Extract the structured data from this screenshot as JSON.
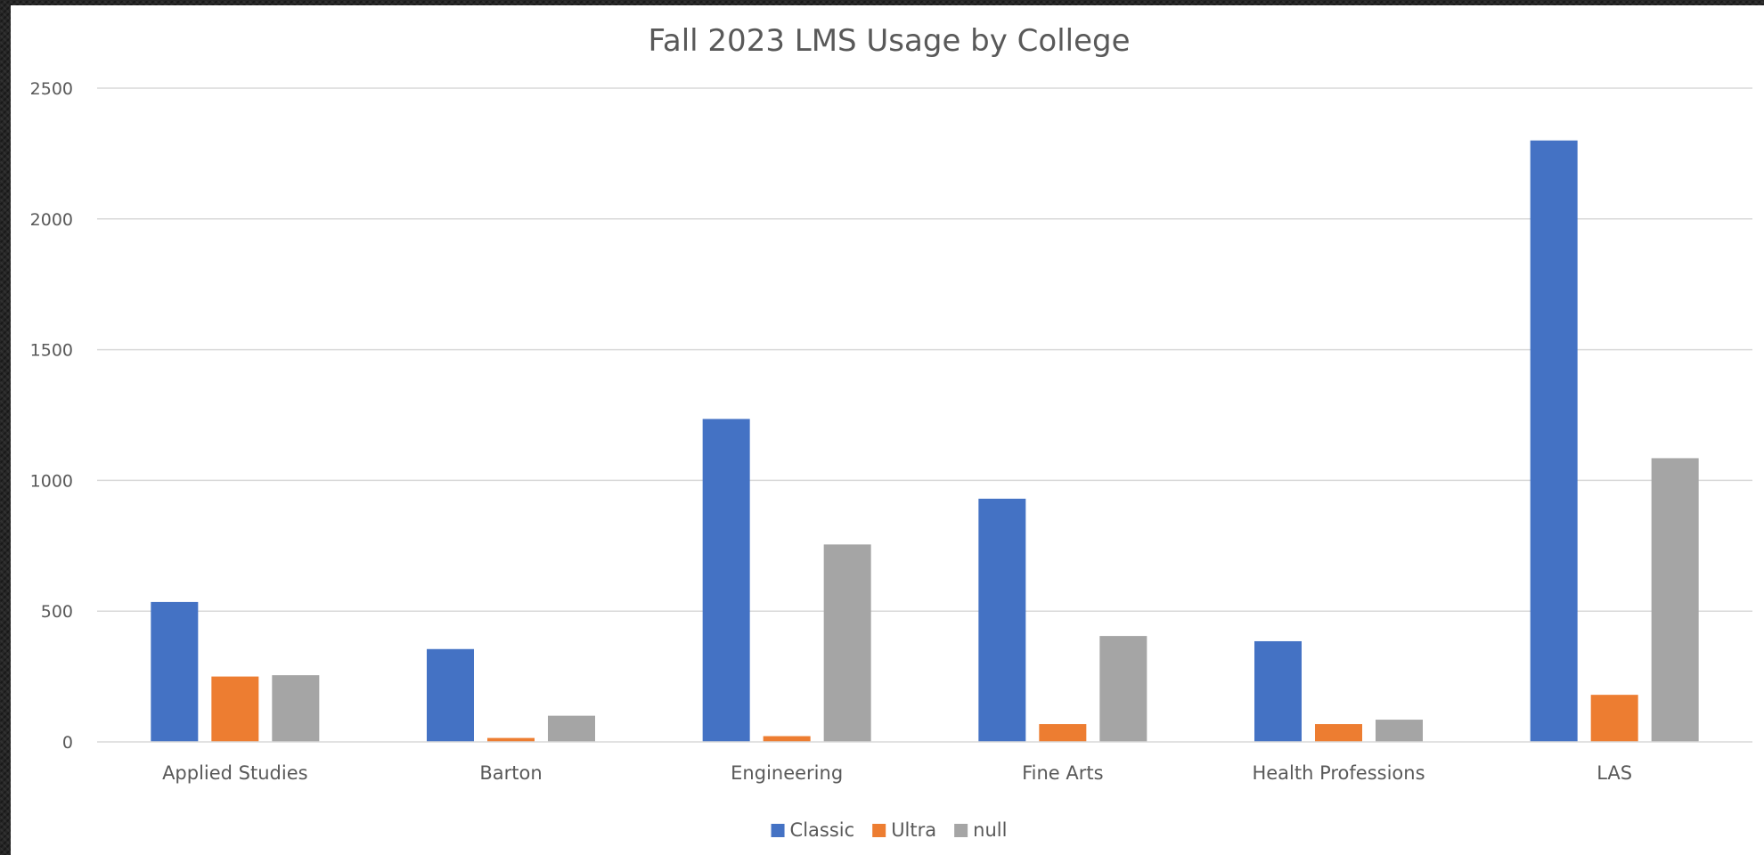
{
  "chart_data": {
    "type": "bar",
    "title": "Fall 2023 LMS Usage by College",
    "xlabel": "",
    "ylabel": "",
    "categories": [
      "Applied Studies",
      "Barton",
      "Engineering",
      "Fine Arts",
      "Health Professions",
      "LAS"
    ],
    "series": [
      {
        "name": "Classic",
        "color": "#4472C4",
        "values": [
          535,
          355,
          1235,
          930,
          385,
          2300
        ]
      },
      {
        "name": "Ultra",
        "color": "#ED7D31",
        "values": [
          250,
          15,
          22,
          68,
          68,
          180
        ]
      },
      {
        "name": "null",
        "color": "#A5A5A5",
        "values": [
          255,
          100,
          755,
          405,
          85,
          1085
        ]
      }
    ],
    "ylim": [
      0,
      2500
    ],
    "yticks": [
      0,
      500,
      1000,
      1500,
      2000,
      2500
    ],
    "grid": true,
    "legend_position": "bottom"
  }
}
